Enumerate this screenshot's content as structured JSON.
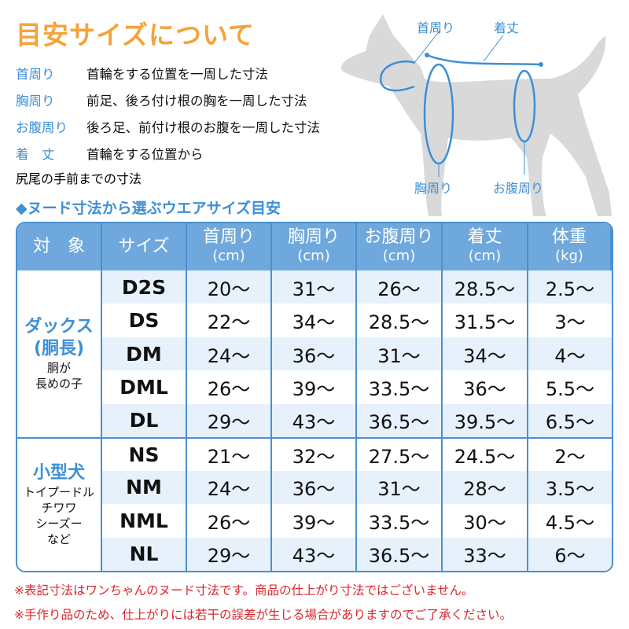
{
  "title": "目安サイズについて",
  "definitions": [
    {
      "label": "首周り",
      "text": "首輪をする位置を一周した寸法"
    },
    {
      "label": "胸周り",
      "text": "前足、後ろ付け根の胸を一周した寸法"
    },
    {
      "label": "お腹周り",
      "text": "後ろ足、前付け根のお腹を一周した寸法"
    },
    {
      "label": "着　丈",
      "text": "首輪をする位置から",
      "text2": "尻尾の手前までの寸法"
    }
  ],
  "diagram": {
    "neck": "首周り",
    "length": "着丈",
    "chest": "胸周り",
    "belly": "お腹周り"
  },
  "subtitle": "◆ヌード寸法から選ぶウエアサイズ目安",
  "table": {
    "headers": [
      {
        "label": "対　象",
        "unit": ""
      },
      {
        "label": "サイズ",
        "unit": ""
      },
      {
        "label": "首周り",
        "unit": "(cm)"
      },
      {
        "label": "胸周り",
        "unit": "(cm)"
      },
      {
        "label": "お腹周り",
        "unit": "(cm)"
      },
      {
        "label": "着丈",
        "unit": "(cm)"
      },
      {
        "label": "体重",
        "unit": "(kg)"
      }
    ],
    "groups": [
      {
        "name": "ダックス\n(胴長)",
        "name1": "ダックス",
        "name2": "(胴長)",
        "sub": [
          "胴が",
          "長めの子"
        ],
        "rows": [
          [
            "D2S",
            "20〜",
            "31〜",
            "26〜",
            "28.5〜",
            "2.5〜"
          ],
          [
            "DS",
            "22〜",
            "34〜",
            "28.5〜",
            "31.5〜",
            "3〜"
          ],
          [
            "DM",
            "24〜",
            "36〜",
            "31〜",
            "34〜",
            "4〜"
          ],
          [
            "DML",
            "26〜",
            "39〜",
            "33.5〜",
            "36〜",
            "5.5〜"
          ],
          [
            "DL",
            "29〜",
            "43〜",
            "36.5〜",
            "39.5〜",
            "6.5〜"
          ]
        ]
      },
      {
        "name1": "小型犬",
        "name2": "",
        "sub": [
          "トイプードル",
          "チワワ",
          "シーズー",
          "など"
        ],
        "rows": [
          [
            "NS",
            "21〜",
            "32〜",
            "27.5〜",
            "24.5〜",
            "2〜"
          ],
          [
            "NM",
            "24〜",
            "36〜",
            "31〜",
            "28〜",
            "3.5〜"
          ],
          [
            "NML",
            "26〜",
            "39〜",
            "33.5〜",
            "30〜",
            "4.5〜"
          ],
          [
            "NL",
            "29〜",
            "43〜",
            "36.5〜",
            "33〜",
            "6〜"
          ]
        ]
      }
    ]
  },
  "notes": [
    "※表記寸法はワンちゃんのヌード寸法です。商品の仕上がり寸法ではございません。",
    "※手作り品のため、仕上がりには若干の誤差が生じる場合がありますのでご了承ください。"
  ],
  "colors": {
    "title": "#f6a23a",
    "accent": "#3d8fd6",
    "header": "#6fa8dc",
    "shade": "#e7f1fb",
    "note": "#d9262b",
    "dog": "#d9d9d9"
  }
}
